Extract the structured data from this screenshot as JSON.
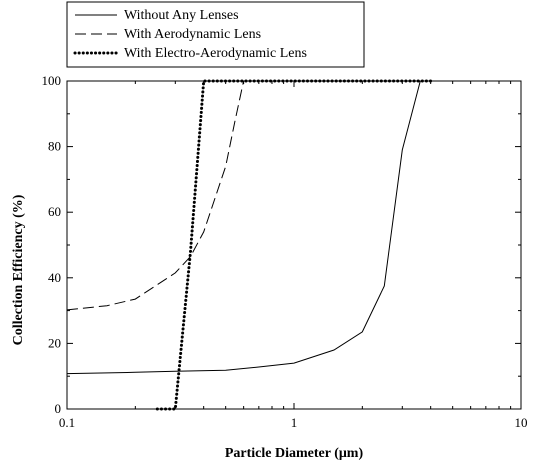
{
  "chart_data": {
    "type": "line",
    "xlabel": "Particle Diameter (μm)",
    "ylabel": "Collection Efficiency (%)",
    "xscale": "log",
    "xlim": [
      0.1,
      10
    ],
    "ylim": [
      0,
      100
    ],
    "xticks": [
      "0.1",
      "1",
      "10"
    ],
    "yticks": [
      "0",
      "20",
      "40",
      "60",
      "80",
      "100"
    ],
    "grid": false,
    "legend_position": "top-left",
    "series": [
      {
        "name": "Without Any Lenses",
        "style": "solid",
        "x": [
          0.1,
          0.2,
          0.3,
          0.5,
          0.7,
          1.0,
          1.5,
          2.0,
          2.5,
          3.0,
          3.6
        ],
        "y": [
          10.8,
          11.2,
          11.5,
          11.8,
          12.8,
          14.0,
          18.0,
          23.5,
          37.5,
          79.0,
          100
        ]
      },
      {
        "name": "With Aerodynamic Lens",
        "style": "dashed",
        "x": [
          0.1,
          0.15,
          0.2,
          0.3,
          0.35,
          0.4,
          0.5,
          0.55,
          0.6
        ],
        "y": [
          30.2,
          31.5,
          33.5,
          41.5,
          46.5,
          54.0,
          74.0,
          88.0,
          100
        ]
      },
      {
        "name": "With Electro-Aerodynamic Lens",
        "style": "dotted",
        "x": [
          0.25,
          0.3,
          0.35,
          0.4,
          4.0
        ],
        "y": [
          0,
          0,
          48.0,
          100,
          100
        ]
      }
    ]
  }
}
